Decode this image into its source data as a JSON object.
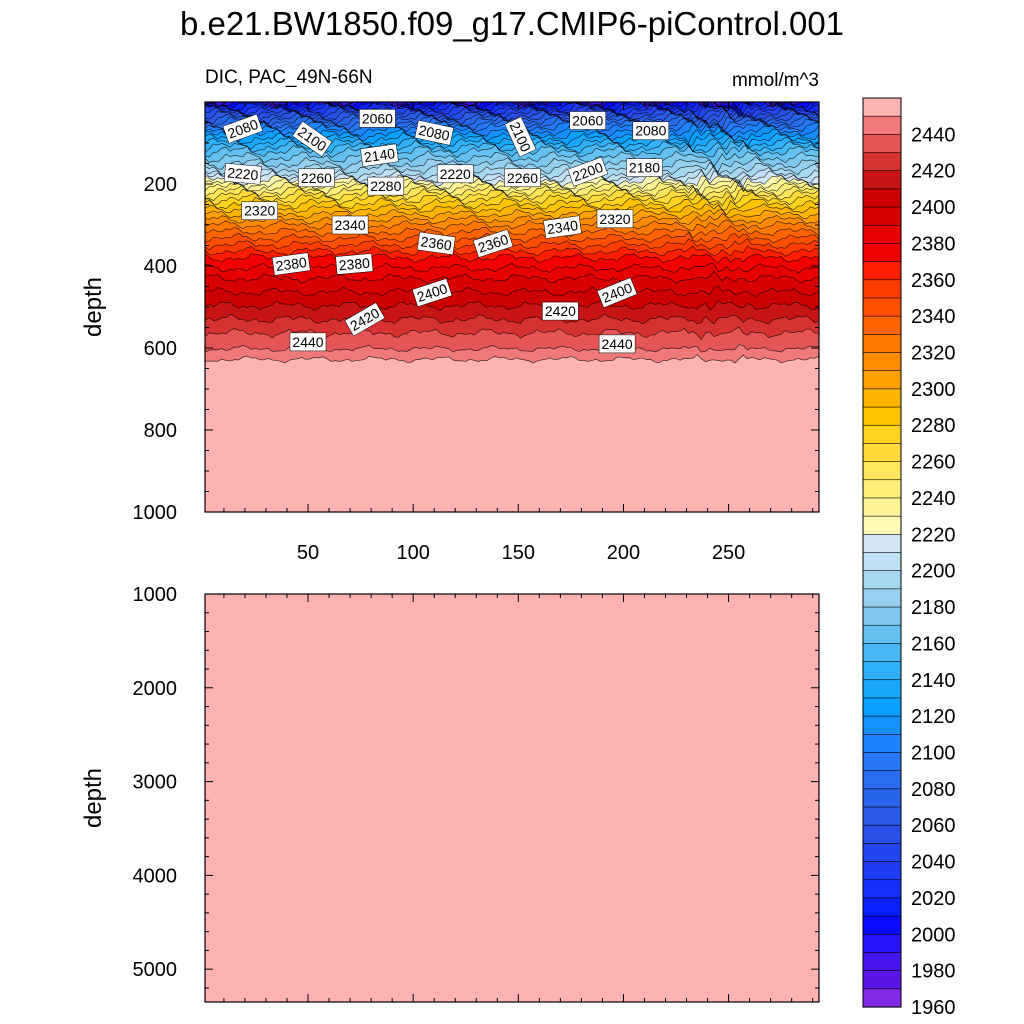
{
  "title": "b.e21.BW1850.f09_g17.CMIP6-piControl.001",
  "colors": {
    "fill_below_600": "#ffb2b2",
    "contour_line": "#000000"
  },
  "chart_data": [
    {
      "type": "contour",
      "panel": "top",
      "subtitle_left": "DIC, PAC_49N-66N",
      "subtitle_right": "mmol/m^3",
      "ylabel": "depth",
      "xlabel": "",
      "xlim": [
        1,
        293
      ],
      "ylim": [
        1000,
        0
      ],
      "yticks": [
        200,
        400,
        600,
        800,
        1000
      ],
      "xticks": [
        50,
        100,
        150,
        200,
        250
      ],
      "contour_levels": [
        1960,
        1970,
        1980,
        1990,
        2000,
        2010,
        2020,
        2030,
        2040,
        2050,
        2060,
        2070,
        2080,
        2090,
        2100,
        2110,
        2120,
        2130,
        2140,
        2150,
        2160,
        2170,
        2180,
        2190,
        2200,
        2210,
        2220,
        2230,
        2240,
        2250,
        2260,
        2270,
        2280,
        2290,
        2300,
        2310,
        2320,
        2330,
        2340,
        2350,
        2360,
        2370,
        2380,
        2390,
        2400,
        2410,
        2420,
        2430,
        2440,
        2450
      ],
      "value_profile": {
        "depth": [
          0,
          20,
          40,
          60,
          80,
          100,
          120,
          150,
          175,
          200,
          230,
          260,
          300,
          340,
          380,
          430,
          480,
          530,
          570,
          610,
          650,
          1000
        ],
        "dic": [
          2000,
          2040,
          2070,
          2100,
          2120,
          2140,
          2160,
          2180,
          2200,
          2230,
          2265,
          2290,
          2320,
          2345,
          2370,
          2390,
          2405,
          2420,
          2432,
          2442,
          2460,
          2460
        ]
      },
      "contour_labels": [
        {
          "text": "2080",
          "x": 19,
          "depth": 65,
          "angle": -20
        },
        {
          "text": "2100",
          "x": 52,
          "depth": 90,
          "angle": 35
        },
        {
          "text": "2060",
          "x": 83,
          "depth": 40,
          "angle": 0
        },
        {
          "text": "2080",
          "x": 110,
          "depth": 75,
          "angle": 12
        },
        {
          "text": "2100",
          "x": 151,
          "depth": 85,
          "angle": 65
        },
        {
          "text": "2060",
          "x": 183,
          "depth": 45,
          "angle": 0
        },
        {
          "text": "2080",
          "x": 213,
          "depth": 70,
          "angle": 0
        },
        {
          "text": "2140",
          "x": 84,
          "depth": 130,
          "angle": -8
        },
        {
          "text": "2220",
          "x": 19,
          "depth": 175,
          "angle": 5
        },
        {
          "text": "2260",
          "x": 54,
          "depth": 185,
          "angle": 0
        },
        {
          "text": "2280",
          "x": 87,
          "depth": 205,
          "angle": 0
        },
        {
          "text": "2220",
          "x": 120,
          "depth": 175,
          "angle": 0
        },
        {
          "text": "2260",
          "x": 152,
          "depth": 185,
          "angle": 0
        },
        {
          "text": "2200",
          "x": 183,
          "depth": 170,
          "angle": -20
        },
        {
          "text": "2180",
          "x": 210,
          "depth": 160,
          "angle": 0
        },
        {
          "text": "2320",
          "x": 27,
          "depth": 265,
          "angle": 0
        },
        {
          "text": "2340",
          "x": 70,
          "depth": 300,
          "angle": 0
        },
        {
          "text": "2360",
          "x": 111,
          "depth": 345,
          "angle": 8
        },
        {
          "text": "2360",
          "x": 138,
          "depth": 345,
          "angle": -18
        },
        {
          "text": "2340",
          "x": 171,
          "depth": 305,
          "angle": -8
        },
        {
          "text": "2320",
          "x": 196,
          "depth": 285,
          "angle": 0
        },
        {
          "text": "2380",
          "x": 42,
          "depth": 395,
          "angle": -8
        },
        {
          "text": "2380",
          "x": 72,
          "depth": 395,
          "angle": -5
        },
        {
          "text": "2400",
          "x": 109,
          "depth": 465,
          "angle": -18
        },
        {
          "text": "2400",
          "x": 197,
          "depth": 465,
          "angle": -22
        },
        {
          "text": "2420",
          "x": 77,
          "depth": 530,
          "angle": -30
        },
        {
          "text": "2420",
          "x": 170,
          "depth": 510,
          "angle": 0
        },
        {
          "text": "2440",
          "x": 50,
          "depth": 585,
          "angle": 0
        },
        {
          "text": "2440",
          "x": 197,
          "depth": 590,
          "angle": 0
        }
      ]
    },
    {
      "type": "contour",
      "panel": "bottom",
      "ylabel": "depth",
      "ylim": [
        1000,
        5350
      ],
      "yticks": [
        1000,
        2000,
        3000,
        4000,
        5000
      ],
      "xlim": [
        1,
        293
      ],
      "uniform_value": 2460
    }
  ],
  "colorbar": {
    "labels": [
      "2440",
      "2420",
      "2400",
      "2380",
      "2360",
      "2340",
      "2320",
      "2300",
      "2280",
      "2260",
      "2240",
      "2220",
      "2200",
      "2180",
      "2160",
      "2140",
      "2120",
      "2100",
      "2080",
      "2060",
      "2040",
      "2020",
      "2000",
      "1980",
      "1960"
    ],
    "colors": [
      "#ffb2b2",
      "#f07a7a",
      "#e55555",
      "#d63232",
      "#c81414",
      "#cc0000",
      "#d80000",
      "#e60000",
      "#f20000",
      "#ff1e00",
      "#ff3c00",
      "#ff5000",
      "#ff6400",
      "#ff7800",
      "#ff8c00",
      "#ffa000",
      "#ffb400",
      "#ffc400",
      "#ffd21e",
      "#ffdc3c",
      "#ffe65a",
      "#ffef78",
      "#fff596",
      "#fffab4",
      "#d2e6f5",
      "#c0e0f5",
      "#a8d8f0",
      "#96d0ee",
      "#7ec8ee",
      "#64c0f0",
      "#48b8f4",
      "#30b0f8",
      "#1aa8fc",
      "#0aa0ff",
      "#1490ff",
      "#1e82ff",
      "#2878f5",
      "#2a6ef0",
      "#2864e6",
      "#2a5ae6",
      "#2850e6",
      "#2446f0",
      "#1e3cf5",
      "#1430fa",
      "#0a20ff",
      "#0a0aff",
      "#2814ff",
      "#4614f0",
      "#5a14e6",
      "#8228e6"
    ]
  }
}
